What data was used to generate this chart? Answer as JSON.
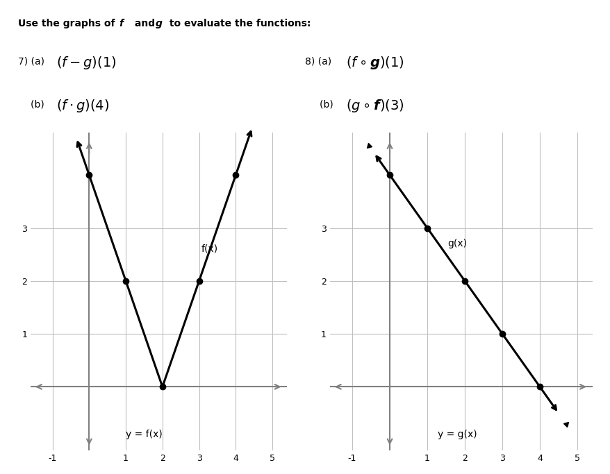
{
  "title_text": "Use the graphs of  f  and  g  to evaluate the functions:",
  "f_points": [
    [
      0,
      4
    ],
    [
      1,
      2
    ],
    [
      2,
      0
    ],
    [
      3,
      2
    ],
    [
      4,
      4
    ]
  ],
  "f_label": "f(x)",
  "f_xlabel": "y = f(x)",
  "g_points": [
    [
      0,
      4
    ],
    [
      1,
      3
    ],
    [
      2,
      2
    ],
    [
      3,
      1
    ],
    [
      4,
      0
    ]
  ],
  "g_label": "g(x)",
  "g_xlabel": "y = g(x)",
  "xlim": [
    -1.6,
    5.4
  ],
  "ylim": [
    -1.2,
    4.8
  ],
  "xticks": [
    -1,
    1,
    2,
    3,
    4,
    5
  ],
  "yticks": [
    1,
    2,
    3
  ],
  "dot_color": "#000000",
  "line_color": "#000000",
  "axis_color": "#808080",
  "bg_color": "#ffffff",
  "grid_color": "#c0c0c0",
  "font_size_title": 10,
  "font_size_label": 10,
  "font_size_tick": 9,
  "fig_width": 8.79,
  "fig_height": 6.83,
  "dpi": 100
}
